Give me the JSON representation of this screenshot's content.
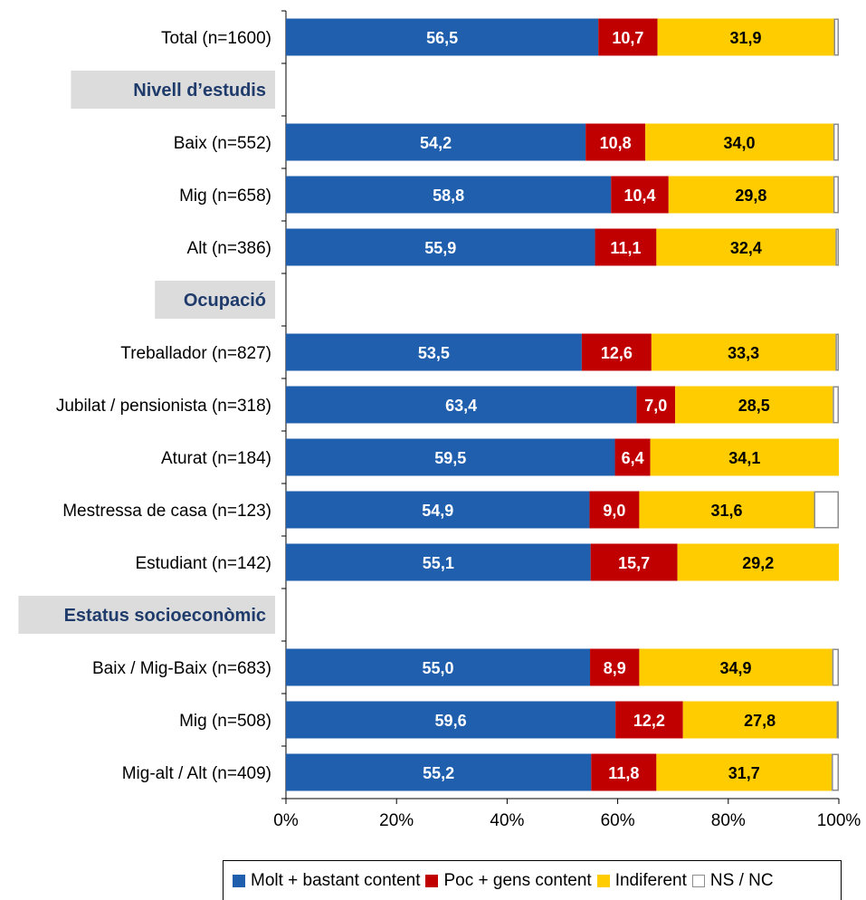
{
  "chart_data": {
    "type": "bar",
    "orientation": "horizontal",
    "stacked": true,
    "xlim": [
      0,
      100
    ],
    "x_tick_labels": [
      "0%",
      "20%",
      "40%",
      "60%",
      "80%",
      "100%"
    ],
    "sections": [
      "Nivell d’estudis",
      "Ocupació",
      "Estatus socioeconòmic"
    ],
    "rows": [
      {
        "label": "Total (n=1600)",
        "values": [
          56.5,
          10.7,
          31.9,
          0.9
        ],
        "labels": [
          "56,5",
          "10,7",
          "31,9",
          ""
        ]
      },
      {
        "section": "Nivell d’estudis"
      },
      {
        "label": "Baix (n=552)",
        "values": [
          54.2,
          10.8,
          34.0,
          1.0
        ],
        "labels": [
          "54,2",
          "10,8",
          "34,0",
          ""
        ]
      },
      {
        "label": "Mig (n=658)",
        "values": [
          58.8,
          10.4,
          29.8,
          1.0
        ],
        "labels": [
          "58,8",
          "10,4",
          "29,8",
          ""
        ]
      },
      {
        "label": "Alt (n=386)",
        "values": [
          55.9,
          11.1,
          32.4,
          0.6
        ],
        "labels": [
          "55,9",
          "11,1",
          "32,4",
          ""
        ]
      },
      {
        "section": "Ocupació"
      },
      {
        "label": "Treballador (n=827)",
        "values": [
          53.5,
          12.6,
          33.3,
          0.6
        ],
        "labels": [
          "53,5",
          "12,6",
          "33,3",
          ""
        ]
      },
      {
        "label": "Jubilat / pensionista (n=318)",
        "values": [
          63.4,
          7.0,
          28.5,
          1.1
        ],
        "labels": [
          "63,4",
          "7,0",
          "28,5",
          ""
        ]
      },
      {
        "label": "Aturat (n=184)",
        "values": [
          59.5,
          6.4,
          34.1,
          0.0
        ],
        "labels": [
          "59,5",
          "6,4",
          "34,1",
          ""
        ]
      },
      {
        "label": "Mestressa de casa (n=123)",
        "values": [
          54.9,
          9.0,
          31.6,
          4.5
        ],
        "labels": [
          "54,9",
          "9,0",
          "31,6",
          ""
        ]
      },
      {
        "label": "Estudiant (n=142)",
        "values": [
          55.1,
          15.7,
          29.2,
          0.0
        ],
        "labels": [
          "55,1",
          "15,7",
          "29,2",
          ""
        ]
      },
      {
        "section": "Estatus socioeconòmic"
      },
      {
        "label": "Baix / Mig-Baix (n=683)",
        "values": [
          55.0,
          8.9,
          34.9,
          1.2
        ],
        "labels": [
          "55,0",
          "8,9",
          "34,9",
          ""
        ]
      },
      {
        "label": "Mig (n=508)",
        "values": [
          59.6,
          12.2,
          27.8,
          0.4
        ],
        "labels": [
          "59,6",
          "12,2",
          "27,8",
          ""
        ]
      },
      {
        "label": "Mig-alt / Alt (n=409)",
        "values": [
          55.2,
          11.8,
          31.7,
          1.3
        ],
        "labels": [
          "55,2",
          "11,8",
          "31,7",
          ""
        ]
      }
    ],
    "series": [
      {
        "name": "Molt + bastant content",
        "color": "#1f5fad",
        "label_color": "#ffffff"
      },
      {
        "name": "Poc + gens content",
        "color": "#c00000",
        "label_color": "#ffffff"
      },
      {
        "name": "Indiferent",
        "color": "#ffcc00",
        "label_color": "#000000"
      },
      {
        "name": "NS / NC",
        "color": "#ffffff",
        "label_color": "#000000"
      }
    ],
    "legend": {
      "position": "bottom",
      "text": [
        "Molt + bastant content",
        "Poc + gens content",
        "Indiferent",
        "NS / NC"
      ]
    },
    "colors": {
      "section_bg": "#dcdcdc",
      "section_text": "#1f3b6b",
      "nsnc_border": "#8c8c8c"
    }
  }
}
